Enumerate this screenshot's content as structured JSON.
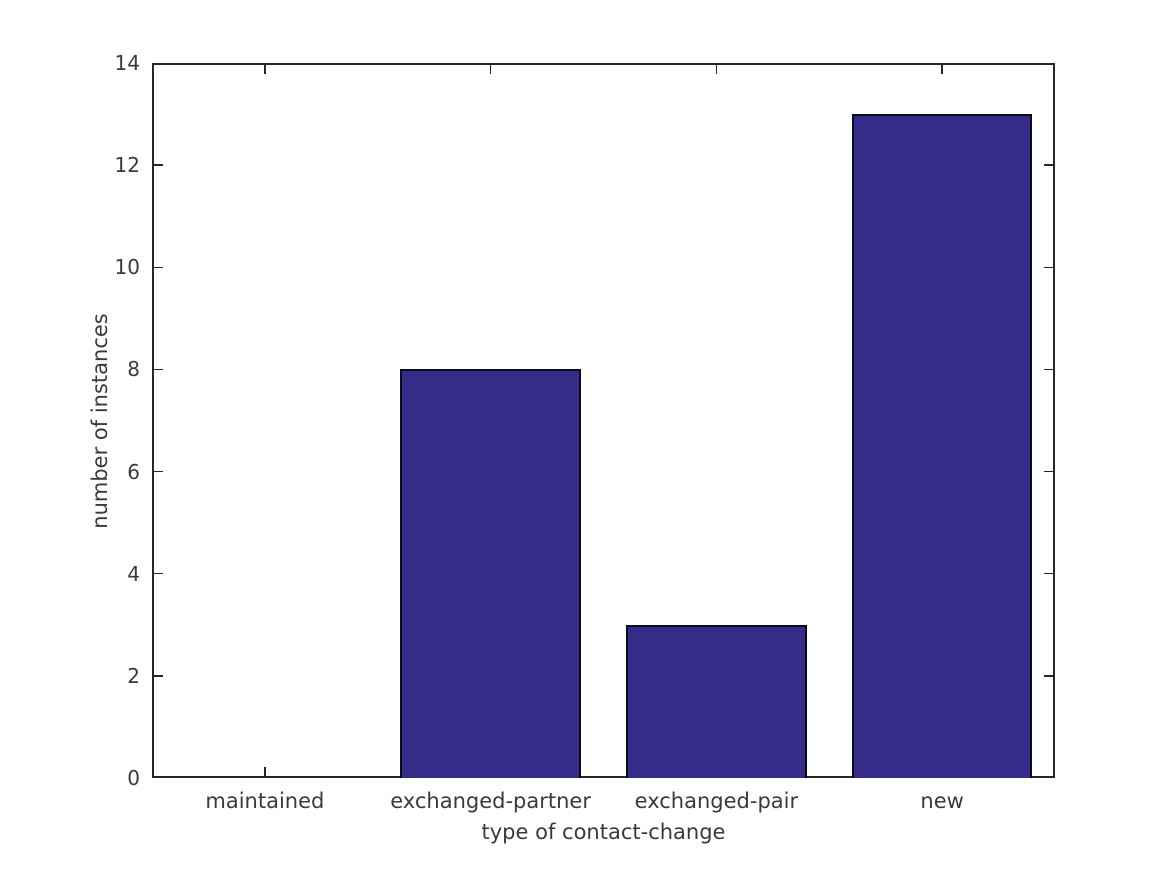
{
  "chart_data": {
    "type": "bar",
    "categories": [
      "maintained",
      "exchanged-partner",
      "exchanged-pair",
      "new"
    ],
    "values": [
      0,
      8,
      3,
      13
    ],
    "title": "",
    "xlabel": "type of contact-change",
    "ylabel": "number of instances",
    "ylim": [
      0,
      14
    ],
    "yticks": [
      0,
      2,
      4,
      6,
      8,
      10,
      12,
      14
    ],
    "bar_width_fraction": 0.8,
    "grid": false,
    "legend": null,
    "colors": {
      "bar_fill": "#342c88",
      "bar_edge": "#0b0b20",
      "axis": "#262626",
      "text": "#3a3a3a",
      "background": "#ffffff"
    }
  }
}
